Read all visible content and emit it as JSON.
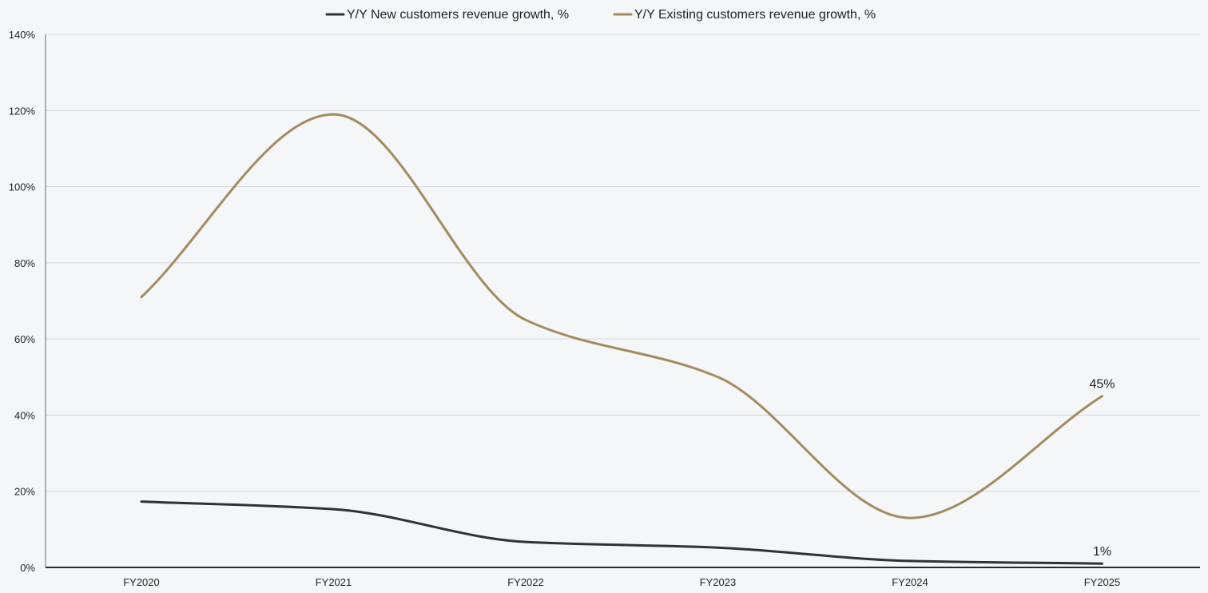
{
  "chart_data": {
    "type": "line",
    "title": "",
    "xlabel": "",
    "ylabel": "",
    "categories": [
      "FY2020",
      "FY2021",
      "FY2022",
      "FY2023",
      "FY2024",
      "FY2025"
    ],
    "yticks": [
      "0%",
      "20%",
      "40%",
      "60%",
      "80%",
      "100%",
      "120%",
      "140%"
    ],
    "ylim": [
      0,
      140
    ],
    "grid": true,
    "legend_position": "top-center",
    "series": [
      {
        "name": "Y/Y New customers revenue growth, %",
        "color": "#2f3236",
        "values": [
          17.3,
          15.3,
          6.7,
          5.2,
          1.7,
          1
        ],
        "end_label": "1%"
      },
      {
        "name": "Y/Y Existing customers revenue growth, %",
        "color": "#a48b5f",
        "values": [
          71,
          119,
          65,
          50,
          13,
          45
        ],
        "end_label": "45%"
      }
    ]
  }
}
